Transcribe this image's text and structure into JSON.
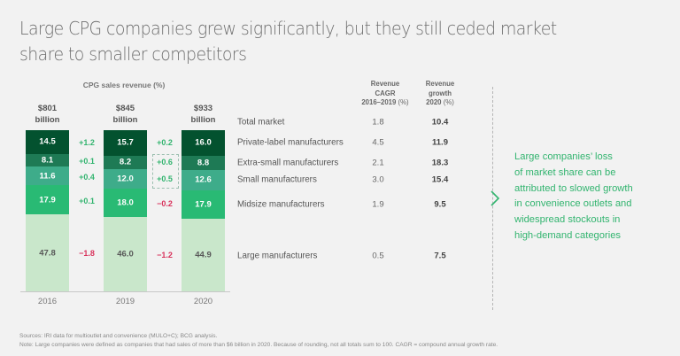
{
  "title": "Large CPG companies grew significantly, but they still ceded market share to smaller competitors",
  "chart_data": {
    "type": "bar",
    "subtype": "stacked-100",
    "title": "CPG sales revenue (%)",
    "categories": [
      "2016",
      "2019",
      "2020"
    ],
    "totals": [
      "$801 billion",
      "$845 billion",
      "$933 billion"
    ],
    "total_lines": [
      [
        "$801",
        "billion"
      ],
      [
        "$845",
        "billion"
      ],
      [
        "$933",
        "billion"
      ]
    ],
    "series": [
      {
        "name": "Private-label manufacturers",
        "values": [
          14.5,
          15.7,
          16.0
        ],
        "color": "#03522f",
        "text_color": "#ffffff"
      },
      {
        "name": "Extra-small manufacturers",
        "values": [
          8.1,
          8.2,
          8.8
        ],
        "color": "#1e7a55",
        "text_color": "#ffffff"
      },
      {
        "name": "Small manufacturers",
        "values": [
          11.6,
          12.0,
          12.6
        ],
        "color": "#3eac8a",
        "text_color": "#ffffff"
      },
      {
        "name": "Midsize manufacturers",
        "values": [
          17.9,
          18.0,
          17.9
        ],
        "color": "#29ba74",
        "text_color": "#ffffff"
      },
      {
        "name": "Large manufacturers",
        "values": [
          47.8,
          46.0,
          44.9
        ],
        "color": "#c9e7cb",
        "text_color": "#575757"
      }
    ],
    "value_labels": [
      [
        "14.5",
        "15.7",
        "16.0"
      ],
      [
        "8.1",
        "8.2",
        "8.8"
      ],
      [
        "11.6",
        "12.0",
        "12.6"
      ],
      [
        "17.9",
        "18.0",
        "17.9"
      ],
      [
        "47.8",
        "46.0",
        "44.9"
      ]
    ],
    "changes": [
      {
        "between": "2016-2019",
        "values": [
          "+1.2",
          "+0.1",
          "+0.4",
          "+0.1",
          "−1.8"
        ]
      },
      {
        "between": "2019-2020",
        "values": [
          "+0.2",
          "+0.6",
          "+0.5",
          "−0.2",
          "−1.2"
        ]
      }
    ],
    "highlighted_changes": {
      "between": "2019-2020",
      "series": [
        "Extra-small manufacturers",
        "Small manufacturers"
      ]
    },
    "positive_color": "#32b46f",
    "negative_color": "#d8315b",
    "ylim": [
      0,
      100
    ]
  },
  "table": {
    "headers": {
      "cagr": [
        "Revenue",
        "CAGR",
        "2016–2019"
      ],
      "cagr_unit": "(%)",
      "growth": [
        "Revenue",
        "growth",
        "2020"
      ],
      "growth_unit": "(%)"
    },
    "rows": [
      {
        "label": "Total market",
        "cagr": "1.8",
        "growth": "10.4"
      },
      {
        "label": "Private-label manufacturers",
        "cagr": "4.5",
        "growth": "11.9"
      },
      {
        "label": "Extra-small manufacturers",
        "cagr": "2.1",
        "growth": "18.3"
      },
      {
        "label": "Small manufacturers",
        "cagr": "3.0",
        "growth": "15.4"
      },
      {
        "label": "Midsize manufacturers",
        "cagr": "1.9",
        "growth": "9.5"
      },
      {
        "label": "Large manufacturers",
        "cagr": "0.5",
        "growth": "7.5"
      }
    ]
  },
  "callout": {
    "icon": "chevron-right-icon",
    "lines": [
      "Large companies’ loss",
      "of market share can be",
      "attributed to slowed growth",
      "in convenience outlets and",
      "widespread stockouts in",
      "high-demand categories"
    ],
    "color": "#32b46f"
  },
  "footer": {
    "sources": "Sources: IRI data for multioutlet and convenience (MULO+C); BCG analysis.",
    "note": "Note: Large companies were defined as companies that had sales of more than $6 billion in 2020. Because of rounding, not all totals sum to 100. CAGR = compound annual growth rate."
  }
}
